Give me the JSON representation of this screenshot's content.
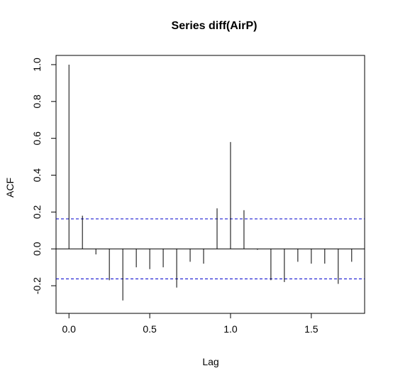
{
  "chart_data": {
    "type": "bar",
    "title": "Series  diff(AirP)",
    "xlabel": "Lag",
    "ylabel": "ACF",
    "xlim": [
      -0.08,
      1.83
    ],
    "ylim": [
      -0.35,
      1.05
    ],
    "x_ticks": [
      "0.0",
      "0.5",
      "1.0",
      "1.5"
    ],
    "y_ticks": [
      "-0.2",
      "0.0",
      "0.2",
      "0.4",
      "0.6",
      "0.8",
      "1.0"
    ],
    "lags": [
      0.0,
      0.0833,
      0.1667,
      0.25,
      0.3333,
      0.4167,
      0.5,
      0.5833,
      0.6667,
      0.75,
      0.8333,
      0.9167,
      1.0,
      1.0833,
      1.1667,
      1.25,
      1.3333,
      1.4167,
      1.5,
      1.5833,
      1.6667,
      1.75
    ],
    "acf": [
      1.0,
      0.18,
      -0.03,
      -0.17,
      -0.28,
      -0.1,
      -0.11,
      -0.1,
      -0.21,
      -0.07,
      -0.08,
      0.22,
      0.58,
      0.21,
      -0.005,
      -0.17,
      -0.18,
      -0.07,
      -0.08,
      -0.08,
      -0.19,
      -0.07
    ],
    "confidence_bound": 0.163,
    "colors": {
      "bars": "#000000",
      "confidence": "#0000cc",
      "zero_line": "#000000"
    }
  }
}
